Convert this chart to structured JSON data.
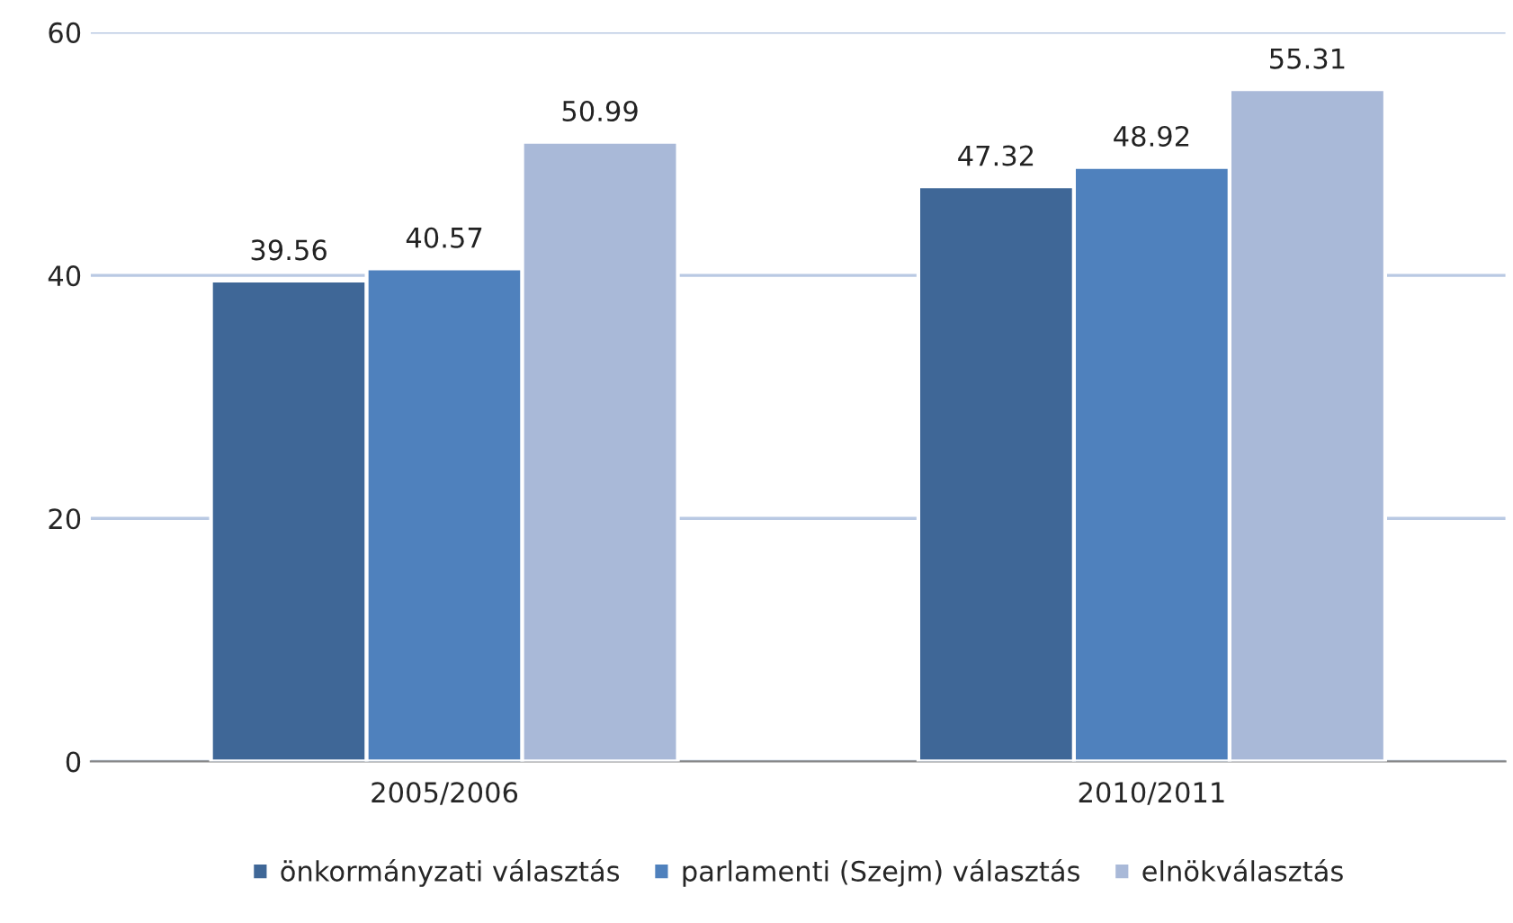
{
  "chart_data": {
    "type": "bar",
    "categories": [
      "2005/2006",
      "2010/2011"
    ],
    "series": [
      {
        "name": "önkormányzati választás",
        "color": "#3f6797",
        "values": [
          39.56,
          47.32
        ]
      },
      {
        "name": "parlamenti (Szejm) választás",
        "color": "#4f81bd",
        "values": [
          40.57,
          48.92
        ]
      },
      {
        "name": "elnökválasztás",
        "color": "#a9b9d8",
        "values": [
          50.99,
          55.31
        ]
      }
    ],
    "ylim": [
      0,
      60
    ],
    "yticks": [
      0,
      20,
      40,
      60
    ],
    "grid": "y",
    "legend": "bottom",
    "data_labels": true
  }
}
